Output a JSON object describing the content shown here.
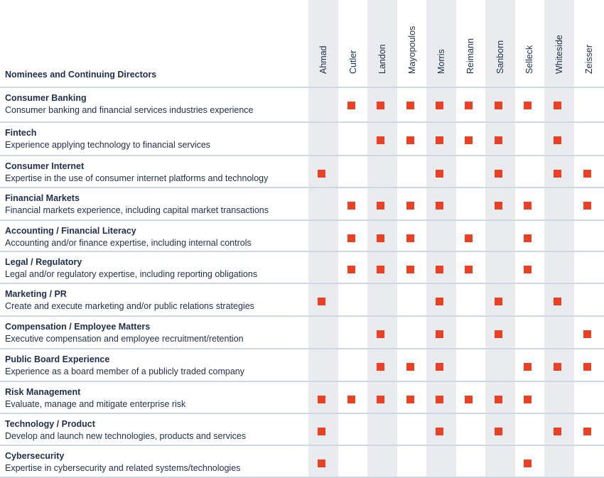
{
  "header": {
    "title": "Nominees and Continuing Directors"
  },
  "directors": [
    "Ahmad",
    "Cutler",
    "Landon",
    "Mayopoulos",
    "Morris",
    "Reimann",
    "Sanborn",
    "Selleck",
    "Whiteside",
    "Zeisser"
  ],
  "skills": [
    {
      "title": "Consumer Banking",
      "description": "Consumer banking and financial services industries experience",
      "marks": [
        false,
        true,
        true,
        true,
        true,
        true,
        true,
        true,
        true,
        false
      ]
    },
    {
      "title": "Fintech",
      "description": "Experience applying technology to financial services",
      "marks": [
        false,
        false,
        true,
        true,
        true,
        true,
        true,
        false,
        true,
        false
      ]
    },
    {
      "title": "Consumer Internet",
      "description": "Expertise in the use of consumer internet platforms and technology",
      "marks": [
        true,
        false,
        false,
        false,
        true,
        false,
        true,
        false,
        true,
        true
      ]
    },
    {
      "title": "Financial Markets",
      "description": "Financial markets experience, including capital market transactions",
      "marks": [
        false,
        true,
        true,
        true,
        true,
        false,
        true,
        true,
        false,
        true
      ]
    },
    {
      "title": "Accounting / Financial Literacy",
      "description": "Accounting and/or finance expertise, including internal controls",
      "marks": [
        false,
        true,
        true,
        true,
        false,
        true,
        false,
        true,
        false,
        false
      ]
    },
    {
      "title": "Legal / Regulatory",
      "description": "Legal and/or regulatory expertise, including reporting obligations",
      "marks": [
        false,
        true,
        true,
        true,
        true,
        true,
        false,
        true,
        false,
        false
      ]
    },
    {
      "title": "Marketing / PR",
      "description": "Create and execute marketing and/or public relations strategies",
      "marks": [
        true,
        false,
        false,
        false,
        true,
        false,
        true,
        false,
        true,
        false
      ]
    },
    {
      "title": "Compensation / Employee Matters",
      "description": "Executive compensation and employee recruitment/retention",
      "marks": [
        false,
        false,
        true,
        false,
        true,
        false,
        true,
        false,
        false,
        true
      ]
    },
    {
      "title": "Public Board Experience",
      "description": "Experience as a board member of a publicly traded company",
      "marks": [
        false,
        false,
        true,
        true,
        true,
        false,
        false,
        true,
        true,
        true
      ]
    },
    {
      "title": "Risk Management",
      "description": "Evaluate, manage and mitigate enterprise risk",
      "marks": [
        true,
        true,
        true,
        true,
        true,
        true,
        true,
        true,
        false,
        false
      ]
    },
    {
      "title": "Technology / Product",
      "description": "Develop and launch new technologies, products and services",
      "marks": [
        true,
        false,
        false,
        false,
        true,
        false,
        true,
        false,
        true,
        true
      ]
    },
    {
      "title": "Cybersecurity",
      "description": "Expertise in cybersecurity and related systems/technologies",
      "marks": [
        true,
        false,
        false,
        false,
        false,
        false,
        false,
        true,
        false,
        false
      ]
    }
  ],
  "colors": {
    "mark": "#ea4023",
    "stripe": "#e9ebee",
    "separator": "#cdd8e3",
    "text": "#1f2f4a"
  }
}
